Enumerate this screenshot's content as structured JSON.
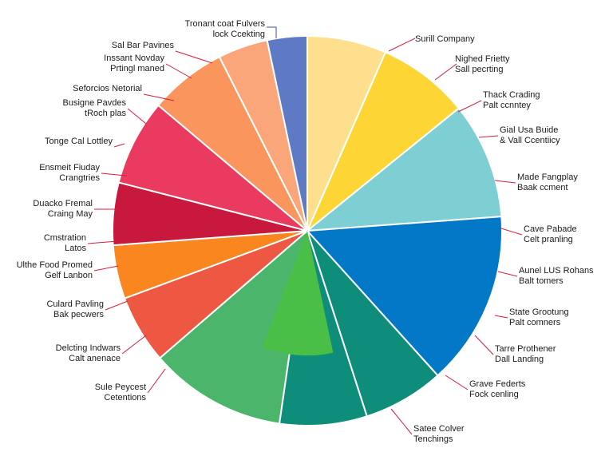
{
  "chart_data": {
    "type": "pie",
    "title": "",
    "slices": [
      {
        "line1": "Surill Company",
        "line2": "",
        "value": 6.35,
        "color": "#FDDF8E"
      },
      {
        "line1": "Nighed Frietty",
        "line2": "Sall pecrting",
        "value": 7.35,
        "color": "#FDD635"
      },
      {
        "line1": "Thack Crading",
        "line2": "Palt ccnntey",
        "value": 0,
        "color": "#FDD635"
      },
      {
        "line1": "Gial Usa Buide",
        "line2": "& Vall Ccentiicy",
        "value": 9.33,
        "color": "#7ECFD3"
      },
      {
        "line1": "Made Fangplay",
        "line2": "Baak ccment",
        "value": 0,
        "color": "#7ECFD3"
      },
      {
        "line1": "Cave Pabade",
        "line2": "Celt pranling",
        "value": 14.0,
        "color": "#0278C6"
      },
      {
        "line1": "Aunel LUS Rohans",
        "line2": "Balt tomers",
        "value": 0,
        "color": "#0278C6"
      },
      {
        "line1": "State Grootung",
        "line2": "Palt comners",
        "value": 0,
        "color": "#0278C6"
      },
      {
        "line1": "Tarre Prothener",
        "line2": "Dall Landing",
        "value": 6.5,
        "color": "#0E8E7A"
      },
      {
        "line1": "Grave Federts",
        "line2": "Fock cenling",
        "value": 7.0,
        "color": "#0E8E7A"
      },
      {
        "line1": "Satee Colver",
        "line2": "Tenchings",
        "value": 0,
        "color": "#0E8E7A"
      },
      {
        "line1": "Sule Peycest",
        "line2": "Cetentions",
        "value": 11.0,
        "color": "#4BB56C"
      },
      {
        "line1": "Delcting Indwars",
        "line2": "Calt anenace",
        "value": 5.5,
        "color": "#EE5842"
      },
      {
        "line1": "Culard Pavling",
        "line2": "Bak pecwers",
        "value": 0,
        "color": "#EE5842"
      },
      {
        "line1": "Ulthe Food Promed",
        "line2": "Gelf Lanbon",
        "value": 4.3,
        "color": "#FA8620"
      },
      {
        "line1": "Cmstration",
        "line2": "Latos",
        "value": 0,
        "color": "#FA8620"
      },
      {
        "line1": "Duacko Fremal",
        "line2": "Craing May",
        "value": 5.0,
        "color": "#C8183E"
      },
      {
        "line1": "Ensmeit Fiuday",
        "line2": "Crangtries",
        "value": 0,
        "color": "#C8183E"
      },
      {
        "line1": "Tonge Cal Lottley",
        "line2": "",
        "value": 6.9,
        "color": "#EA3A60"
      },
      {
        "line1": "Busigne Pavdes",
        "line2": "tRoch plas",
        "value": 0,
        "color": "#EA3A60"
      },
      {
        "line1": "Seforcios Netorial",
        "line2": "",
        "value": 6.2,
        "color": "#F9955D"
      },
      {
        "line1": "Inssant Novday",
        "line2": "Prtingl maned",
        "value": 0,
        "color": "#F9955D"
      },
      {
        "line1": "Sal Bar Pavines",
        "line2": "",
        "value": 4.0,
        "color": "#FBA57B"
      },
      {
        "line1": "Tronant coat Fulvers",
        "line2": "lock Ccekting",
        "value": 3.2,
        "color": "#5F7AC4"
      }
    ],
    "inner_overlay": {
      "color": "#49BF48",
      "value_span": [
        45.1,
        54.0
      ]
    }
  }
}
